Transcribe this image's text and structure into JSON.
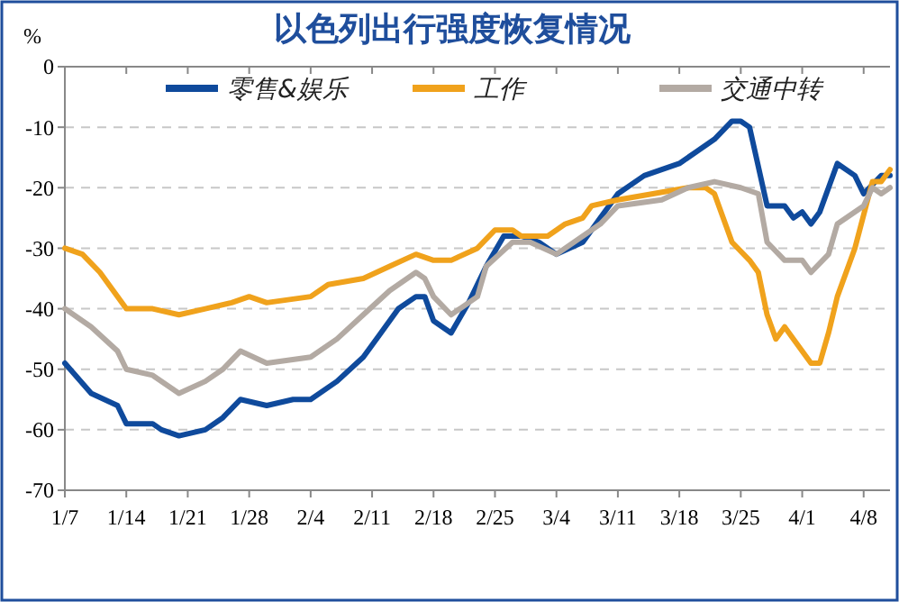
{
  "chart_data": {
    "type": "line",
    "title": "以色列出行强度恢复情况",
    "ylabel": "%",
    "xlim": [
      "--01-07",
      "--04-11"
    ],
    "xticks": [
      {
        "value": "--01-07",
        "label": "1/7"
      },
      {
        "value": "--01-14",
        "label": "1/14"
      },
      {
        "value": "--01-21",
        "label": "1/21"
      },
      {
        "value": "--01-28",
        "label": "1/28"
      },
      {
        "value": "--02-04",
        "label": "2/4"
      },
      {
        "value": "--02-11",
        "label": "2/11"
      },
      {
        "value": "--02-18",
        "label": "2/18"
      },
      {
        "value": "--02-25",
        "label": "2/25"
      },
      {
        "value": "--03-04",
        "label": "3/4"
      },
      {
        "value": "--03-11",
        "label": "3/11"
      },
      {
        "value": "--03-18",
        "label": "3/18"
      },
      {
        "value": "--03-25",
        "label": "3/25"
      },
      {
        "value": "--04-01",
        "label": "4/1"
      },
      {
        "value": "--04-08",
        "label": "4/8"
      }
    ],
    "ylim": [
      -70,
      0
    ],
    "yticks": [
      0,
      -10,
      -20,
      -30,
      -40,
      -50,
      -60,
      -70
    ],
    "grid": "y",
    "legend": "top",
    "line_style": "solid",
    "marker": "none",
    "series": [
      {
        "name": "零售&娱乐",
        "color": "#0f4a9c",
        "x": [
          "--01-07",
          "--01-10",
          "--01-13",
          "--01-14",
          "--01-17",
          "--01-18",
          "--01-20",
          "--01-23",
          "--01-25",
          "--01-27",
          "--01-30",
          "--02-02",
          "--02-04",
          "--02-07",
          "--02-10",
          "--02-12",
          "--02-14",
          "--02-16",
          "--02-17",
          "--02-18",
          "--02-20",
          "--02-22",
          "--02-24",
          "--02-26",
          "--02-28",
          "--03-02",
          "--03-04",
          "--03-07",
          "--03-09",
          "--03-11",
          "--03-14",
          "--03-16",
          "--03-18",
          "--03-20",
          "--03-22",
          "--03-24",
          "--03-25",
          "--03-26",
          "--03-28",
          "--03-30",
          "--03-31",
          "--04-01",
          "--04-02",
          "--04-03",
          "--04-05",
          "--04-07",
          "--04-08",
          "--04-10",
          "--04-11"
        ],
        "values": [
          -49,
          -54,
          -56,
          -59,
          -59,
          -60,
          -61,
          -60,
          -58,
          -55,
          -56,
          -55,
          -55,
          -52,
          -48,
          -44,
          -40,
          -38,
          -38,
          -42,
          -44,
          -39,
          -33,
          -28,
          -28,
          -29,
          -31,
          -29,
          -25,
          -21,
          -18,
          -17,
          -16,
          -14,
          -12,
          -9,
          -9,
          -10,
          -23,
          -23,
          -25,
          -24,
          -26,
          -24,
          -16,
          -18,
          -21,
          -18,
          -18
        ]
      },
      {
        "name": "工作",
        "color": "#f0a21c",
        "x": [
          "--01-07",
          "--01-09",
          "--01-11",
          "--01-14",
          "--01-17",
          "--01-20",
          "--01-23",
          "--01-26",
          "--01-28",
          "--01-30",
          "--02-04",
          "--02-06",
          "--02-10",
          "--02-13",
          "--02-16",
          "--02-18",
          "--02-20",
          "--02-23",
          "--02-25",
          "--02-27",
          "--02-28",
          "--03-03",
          "--03-05",
          "--03-07",
          "--03-08",
          "--03-11",
          "--03-15",
          "--03-19",
          "--03-21",
          "--03-22",
          "--03-24",
          "--03-26",
          "--03-27",
          "--03-28",
          "--03-29",
          "--03-30",
          "--03-31",
          "--04-02",
          "--04-03",
          "--04-04",
          "--04-05",
          "--04-07",
          "--04-09",
          "--04-10",
          "--04-11"
        ],
        "values": [
          -30,
          -31,
          -34,
          -40,
          -40,
          -41,
          -40,
          -39,
          -38,
          -39,
          -38,
          -36,
          -35,
          -33,
          -31,
          -32,
          -32,
          -30,
          -27,
          -27,
          -28,
          -28,
          -26,
          -25,
          -23,
          -22,
          -21,
          -20,
          -20,
          -21,
          -29,
          -32,
          -34,
          -41,
          -45,
          -43,
          -45,
          -49,
          -49,
          -44,
          -38,
          -30,
          -19,
          -19,
          -17
        ]
      },
      {
        "name": "交通中转",
        "color": "#b3aaa3",
        "x": [
          "--01-07",
          "--01-10",
          "--01-13",
          "--01-14",
          "--01-17",
          "--01-20",
          "--01-23",
          "--01-25",
          "--01-27",
          "--01-30",
          "--02-04",
          "--02-07",
          "--02-10",
          "--02-13",
          "--02-16",
          "--02-17",
          "--02-18",
          "--02-20",
          "--02-23",
          "--02-24",
          "--02-27",
          "--03-01",
          "--03-04",
          "--03-07",
          "--03-09",
          "--03-11",
          "--03-16",
          "--03-19",
          "--03-22",
          "--03-25",
          "--03-27",
          "--03-28",
          "--03-30",
          "--04-01",
          "--04-02",
          "--04-04",
          "--04-05",
          "--04-08",
          "--04-09",
          "--04-10",
          "--04-11"
        ],
        "values": [
          -40,
          -43,
          -47,
          -50,
          -51,
          -54,
          -52,
          -50,
          -47,
          -49,
          -48,
          -45,
          -41,
          -37,
          -34,
          -35,
          -38,
          -41,
          -38,
          -33,
          -29,
          -29,
          -31,
          -28,
          -26,
          -23,
          -22,
          -20,
          -19,
          -20,
          -21,
          -29,
          -32,
          -32,
          -34,
          -31,
          -26,
          -23,
          -20,
          -21,
          -20
        ]
      }
    ]
  }
}
